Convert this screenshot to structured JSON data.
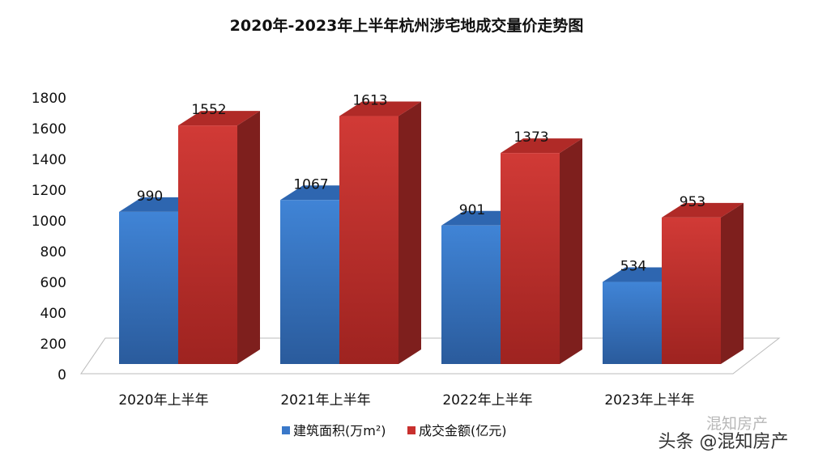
{
  "chart_data": {
    "type": "bar",
    "title": "2020年-2023年上半年杭州涉宅地成交量价走势图",
    "categories": [
      "2020年上半年",
      "2021年上半年",
      "2022年上半年",
      "2023年上半年"
    ],
    "series": [
      {
        "name": "建筑面积(万m²)",
        "values": [
          990,
          1067,
          901,
          534
        ],
        "color": "#3a78c9"
      },
      {
        "name": "成交金额(亿元)",
        "values": [
          1552,
          1613,
          1373,
          953
        ],
        "color": "#c8302e"
      }
    ],
    "yticks": [
      0,
      200,
      400,
      600,
      800,
      1000,
      1200,
      1400,
      1600,
      1800
    ],
    "ylim": [
      0,
      1800
    ],
    "grid": false,
    "legend": "bottom",
    "style": "3d"
  },
  "watermark": {
    "line1": "混知房产",
    "line2": "头条 @混知房产"
  }
}
